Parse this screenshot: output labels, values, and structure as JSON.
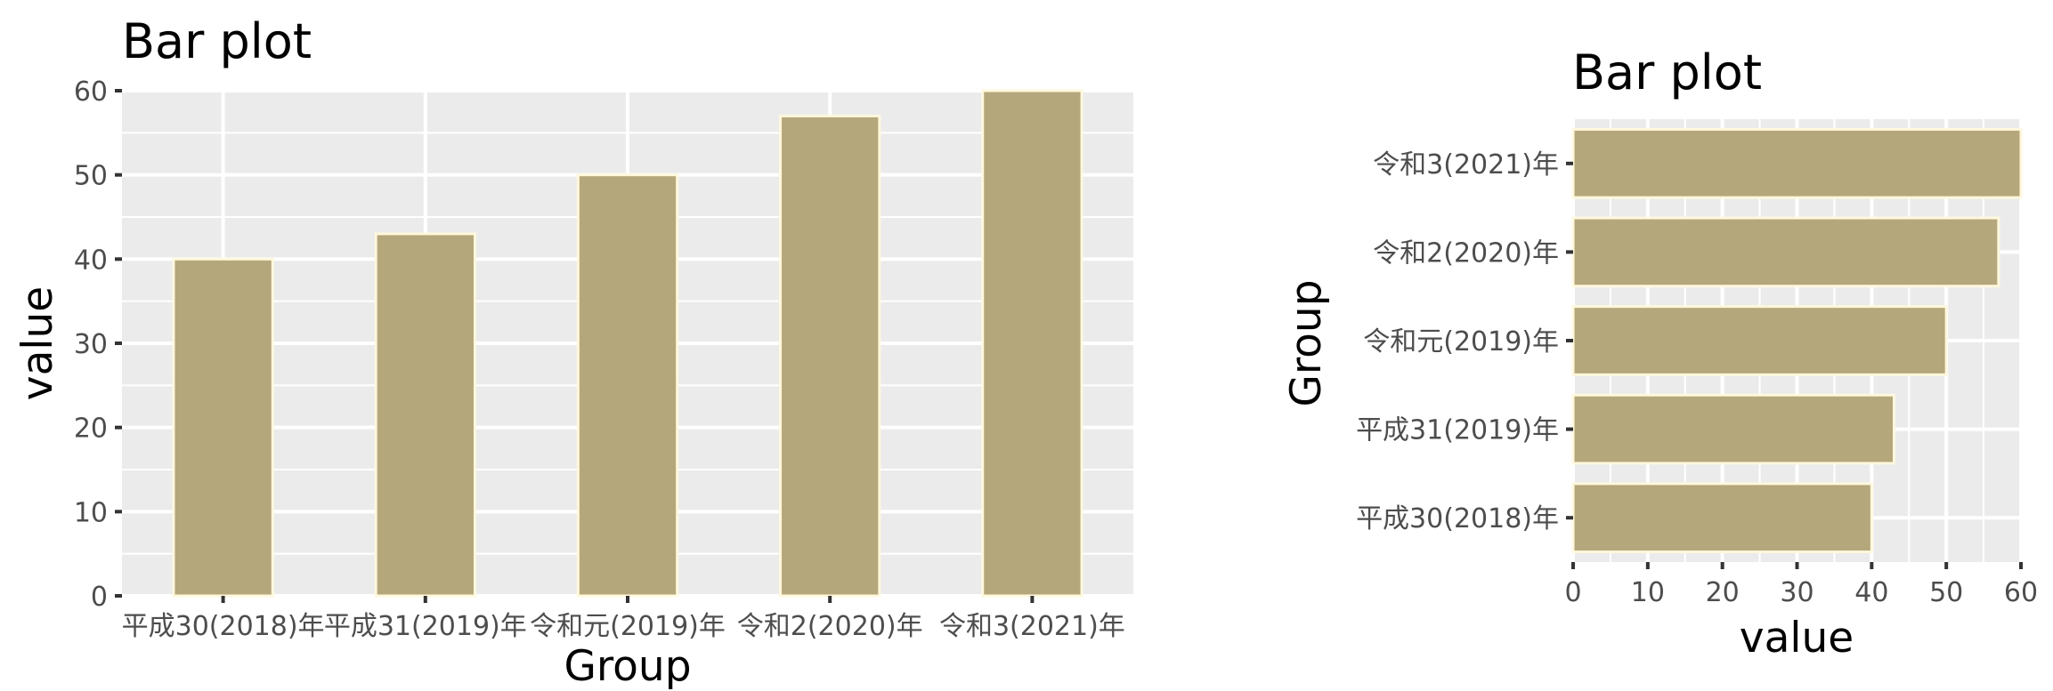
{
  "chart_data": [
    {
      "type": "bar",
      "orientation": "vertical",
      "title": "Bar plot",
      "xlabel": "Group",
      "ylabel": "value",
      "categories": [
        "平成30(2018)年",
        "平成31(2019)年",
        "令和元(2019)年",
        "令和2(2020)年",
        "令和3(2021)年"
      ],
      "values": [
        40,
        43,
        50,
        57,
        60
      ],
      "ylim": [
        0,
        60
      ],
      "yticks": [
        "0",
        "10",
        "20",
        "30",
        "40",
        "50",
        "60"
      ],
      "bar_color": "#b5a77c",
      "bar_outline": "#fff8dc",
      "panel_color": "#ebebeb",
      "grid": true
    },
    {
      "type": "bar",
      "orientation": "horizontal",
      "title": "Bar plot",
      "xlabel": "value",
      "ylabel": "Group",
      "categories": [
        "平成30(2018)年",
        "平成31(2019)年",
        "令和元(2019)年",
        "令和2(2020)年",
        "令和3(2021)年"
      ],
      "values": [
        40,
        43,
        50,
        57,
        60
      ],
      "xlim": [
        0,
        60
      ],
      "xticks": [
        "0",
        "10",
        "20",
        "30",
        "40",
        "50",
        "60"
      ],
      "bar_color": "#b5a77c",
      "bar_outline": "#fff8dc",
      "panel_color": "#ebebeb",
      "grid": true
    }
  ]
}
